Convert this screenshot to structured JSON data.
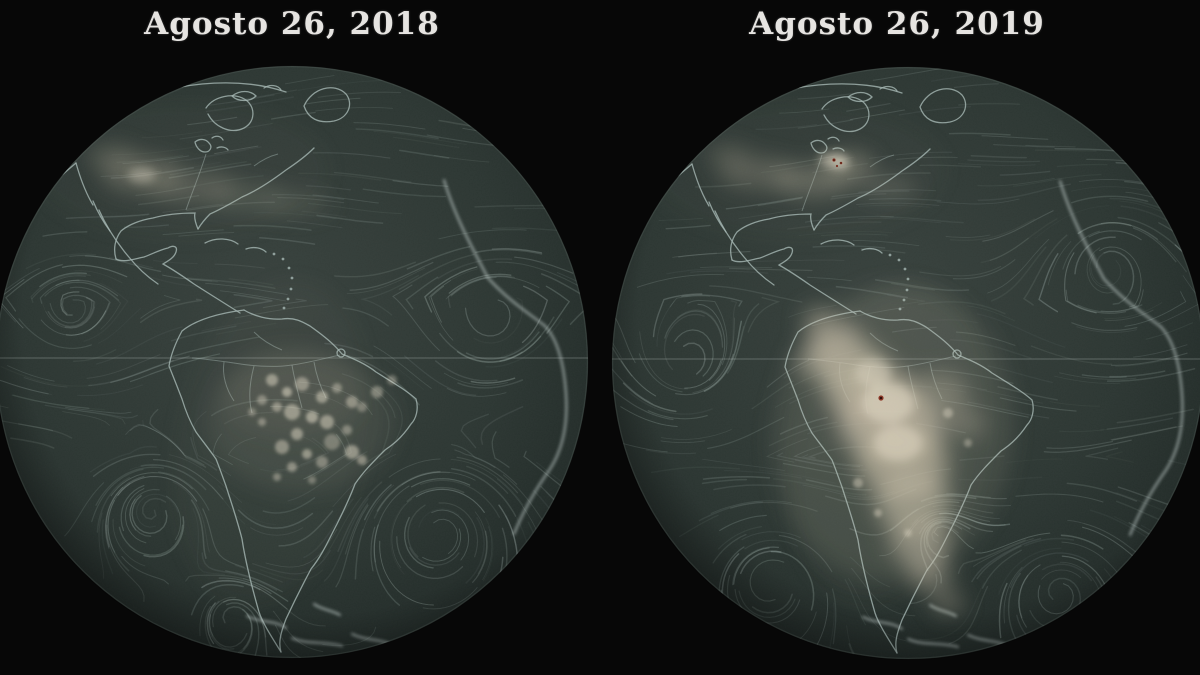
{
  "globes": [
    {
      "id": "globe-2018",
      "title": "Agosto 26, 2018"
    },
    {
      "id": "globe-2019",
      "title": "Agosto 26, 2019"
    }
  ],
  "theme": {
    "background": "#070707",
    "title_color": "#e6e4e1",
    "ocean_center": "#39423e",
    "ocean_mid": "#2d3733",
    "ocean_edge": "#1c2422",
    "streak_color": "#b7c9c3",
    "coast_color": "#a6b8b4",
    "coast_bright": "#d3e0dd",
    "equator_color": "#cdd8d4",
    "land_tint": "#9a9c8e",
    "smoke_color": "#c9bfa9",
    "smoke_bright": "#e4dcc8",
    "fire_color": "#8a2a1a",
    "fire_core": "#2e0b06"
  }
}
